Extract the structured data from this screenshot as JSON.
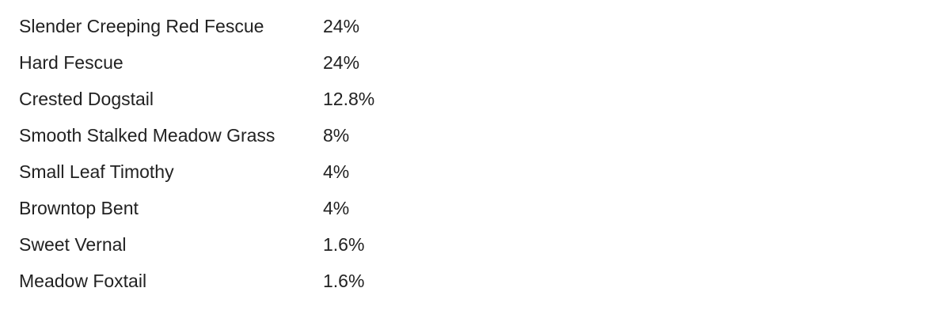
{
  "rows": [
    {
      "name": "Slender Creeping Red Fescue",
      "pct": "24%"
    },
    {
      "name": "Hard Fescue",
      "pct": "24%"
    },
    {
      "name": "Crested Dogstail",
      "pct": "12.8%"
    },
    {
      "name": "Smooth Stalked Meadow Grass",
      "pct": "8%"
    },
    {
      "name": "Small Leaf Timothy",
      "pct": "4%"
    },
    {
      "name": "Browntop Bent",
      "pct": "4%"
    },
    {
      "name": "Sweet Vernal",
      "pct": "1.6%"
    },
    {
      "name": "Meadow Foxtail",
      "pct": "1.6%"
    }
  ]
}
